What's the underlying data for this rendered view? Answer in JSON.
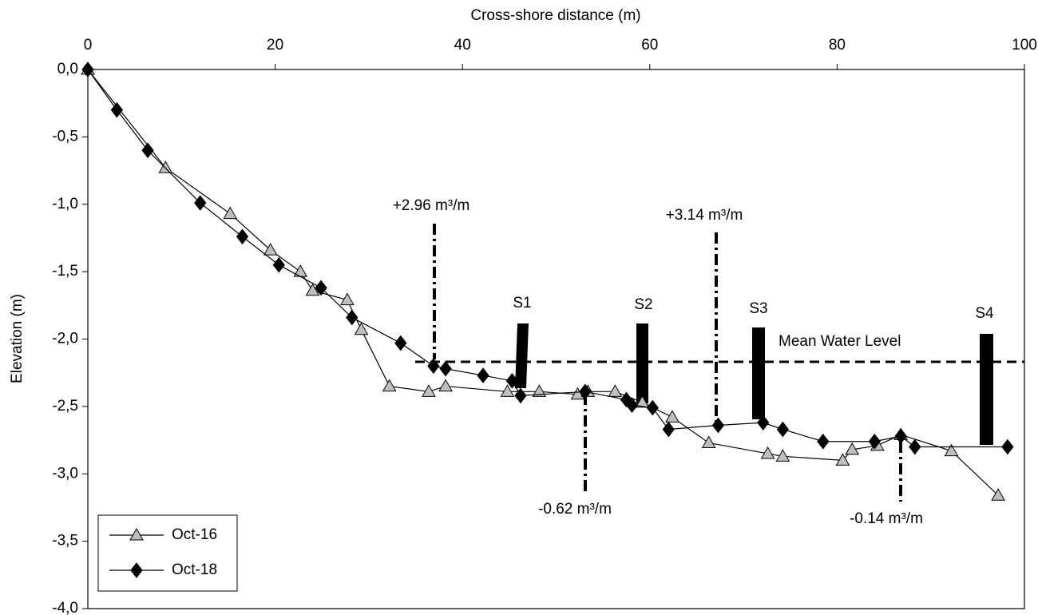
{
  "chart_data": {
    "type": "line",
    "x_label": "Cross-shore distance (m)",
    "y_label": "Elevation (m)",
    "xlim": [
      0,
      100
    ],
    "xticks": [
      0,
      20,
      40,
      60,
      80,
      100
    ],
    "ylim": [
      -4,
      0
    ],
    "yticks": [
      {
        "value": 0,
        "label": "0,0"
      },
      {
        "value": -0.5,
        "label": "-0,5"
      },
      {
        "value": -1,
        "label": "-1,0"
      },
      {
        "value": -1.5,
        "label": "-1,5"
      },
      {
        "value": -2,
        "label": "-2,0"
      },
      {
        "value": -2.5,
        "label": "-2,5"
      },
      {
        "value": -3,
        "label": "-3,0"
      },
      {
        "value": -3.5,
        "label": "-3,5"
      },
      {
        "value": -4,
        "label": "-4,0"
      }
    ],
    "legend": "lower left",
    "series": [
      {
        "name": "Oct-16",
        "color": "#bfbfbf",
        "marker": "triangle",
        "x": [
          0,
          8.3,
          15.2,
          19.5,
          22.7,
          24.0,
          27.7,
          29.2,
          32.2,
          36.4,
          38.2,
          44.8,
          48.2,
          52.3,
          53.4,
          56.3,
          59.2,
          62.4,
          66.3,
          72.6,
          74.2,
          80.6,
          81.6,
          84.3,
          86.8,
          92.2,
          97.2
        ],
        "values": [
          0,
          -0.73,
          -1.07,
          -1.34,
          -1.5,
          -1.64,
          -1.71,
          -1.93,
          -2.35,
          -2.39,
          -2.35,
          -2.39,
          -2.39,
          -2.41,
          -2.39,
          -2.39,
          -2.47,
          -2.58,
          -2.77,
          -2.85,
          -2.87,
          -2.9,
          -2.82,
          -2.79,
          -2.71,
          -2.83,
          -3.16
        ]
      },
      {
        "name": "Oct-18",
        "color": "#000000",
        "marker": "diamond",
        "x": [
          0,
          3.1,
          6.4,
          12.0,
          16.5,
          20.4,
          24.9,
          28.2,
          33.4,
          36.9,
          38.2,
          42.2,
          45.3,
          46.2,
          53.1,
          57.5,
          58.1,
          60.3,
          62.0,
          67.3,
          72.1,
          74.2,
          78.5,
          84.0,
          86.8,
          88.3,
          98.2
        ],
        "values": [
          0,
          -0.3,
          -0.6,
          -0.99,
          -1.24,
          -1.45,
          -1.62,
          -1.84,
          -2.03,
          -2.2,
          -2.22,
          -2.27,
          -2.31,
          -2.42,
          -2.39,
          -2.45,
          -2.49,
          -2.51,
          -2.67,
          -2.64,
          -2.62,
          -2.67,
          -2.76,
          -2.76,
          -2.72,
          -2.8,
          -2.8
        ]
      }
    ],
    "annotations": [
      "S1",
      "S2",
      "S3",
      "S4",
      "Mean Water Level",
      "+2.96 m³/m",
      "+3.14 m³/m",
      "-0.62 m³/m",
      "-0.14 m³/m"
    ]
  }
}
